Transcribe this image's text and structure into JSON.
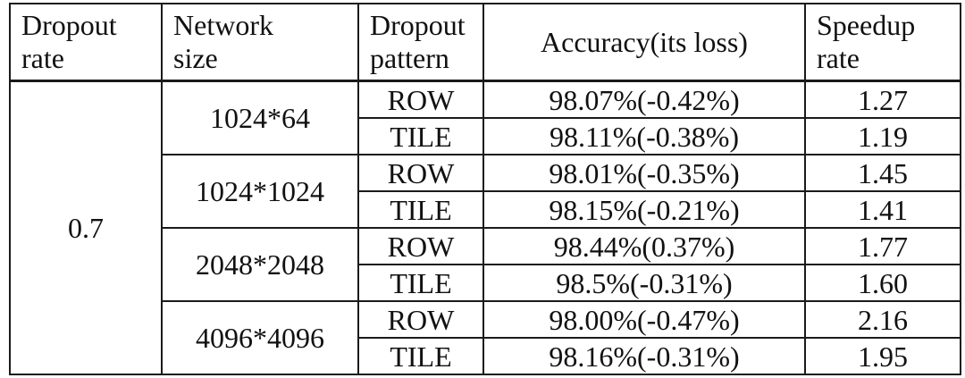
{
  "headers": {
    "dropout_rate": [
      "Dropout",
      "rate"
    ],
    "network_size": [
      "Network",
      "size"
    ],
    "dropout_pattern": [
      "Dropout",
      "pattern"
    ],
    "accuracy": "Accuracy(its loss)",
    "speedup_rate": [
      "Speedup",
      "rate"
    ]
  },
  "dropout_rate": "0.7",
  "groups": [
    {
      "network_size": "1024*64",
      "rows": [
        {
          "pattern": "ROW",
          "accuracy": "98.07%(-0.42%)",
          "speedup": "1.27"
        },
        {
          "pattern": "TILE",
          "accuracy": "98.11%(-0.38%)",
          "speedup": "1.19"
        }
      ]
    },
    {
      "network_size": "1024*1024",
      "rows": [
        {
          "pattern": "ROW",
          "accuracy": "98.01%(-0.35%)",
          "speedup": "1.45"
        },
        {
          "pattern": "TILE",
          "accuracy": "98.15%(-0.21%)",
          "speedup": "1.41"
        }
      ]
    },
    {
      "network_size": "2048*2048",
      "rows": [
        {
          "pattern": "ROW",
          "accuracy": "98.44%(0.37%)",
          "speedup": "1.77"
        },
        {
          "pattern": "TILE",
          "accuracy": "98.5%(-0.31%)",
          "speedup": "1.60"
        }
      ]
    },
    {
      "network_size": "4096*4096",
      "rows": [
        {
          "pattern": "ROW",
          "accuracy": "98.00%(-0.47%)",
          "speedup": "2.16"
        },
        {
          "pattern": "TILE",
          "accuracy": "98.16%(-0.31%)",
          "speedup": "1.95"
        }
      ]
    }
  ]
}
